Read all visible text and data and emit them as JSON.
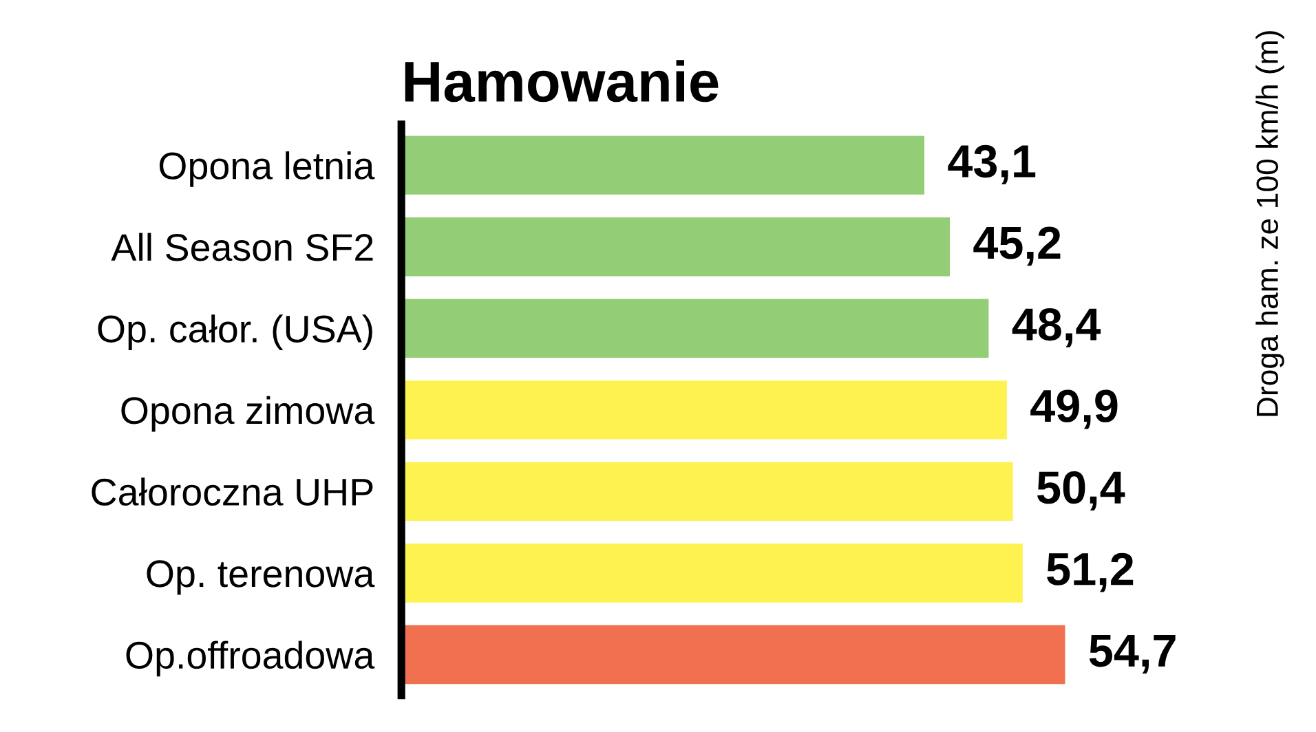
{
  "chart_data": {
    "type": "bar",
    "orientation": "horizontal",
    "title": "Hamowanie",
    "annotations": [
      "Droga ham. ze 100 km/h (m)"
    ],
    "categories": [
      "Opona letnia",
      "All Season SF2",
      "Op. całor. (USA)",
      "Opona zimowa",
      "Całoroczna UHP",
      "Op. terenowa",
      "Op.offroadowa"
    ],
    "values": [
      43.1,
      45.2,
      48.4,
      49.9,
      50.4,
      51.2,
      54.7
    ],
    "colors": [
      "#93cd76",
      "#93cd76",
      "#93cd76",
      "#fdf250",
      "#fdf250",
      "#fdf250",
      "#f07050"
    ],
    "value_labels": [
      "43,1",
      "45,2",
      "48,4",
      "49,9",
      "50,4",
      "51,2",
      "54,7"
    ],
    "tick_labels": "y",
    "grid": false,
    "legend": false
  }
}
